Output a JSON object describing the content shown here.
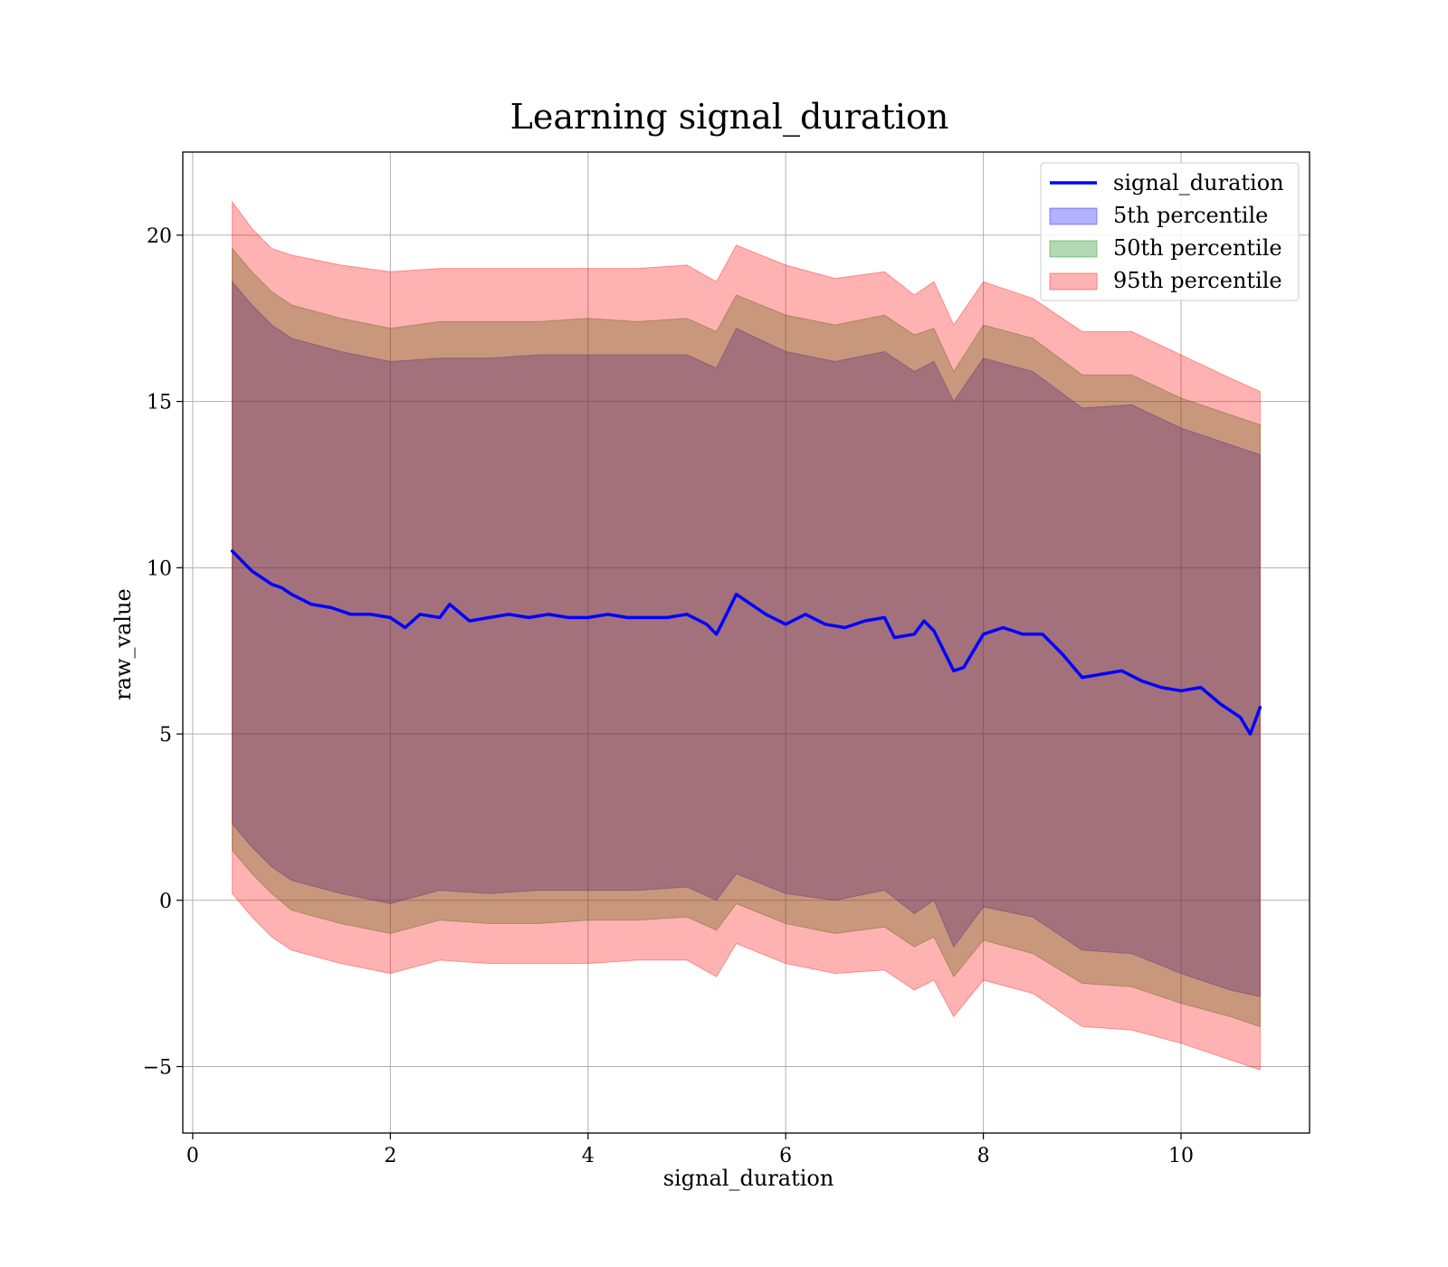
{
  "chart_data": {
    "type": "line",
    "title": "Learning signal_duration",
    "xlabel": "signal_duration",
    "ylabel": "raw_value",
    "xlim": [
      -0.1,
      11.3
    ],
    "ylim": [
      -7,
      22.5
    ],
    "xticks": [
      0,
      2,
      4,
      6,
      8,
      10
    ],
    "xtick_labels": [
      "0",
      "2",
      "4",
      "6",
      "8",
      "10"
    ],
    "yticks": [
      -5,
      0,
      5,
      10,
      15,
      20
    ],
    "ytick_labels": [
      "−5",
      "0",
      "5",
      "10",
      "15",
      "20"
    ],
    "grid": true,
    "legend_position": "top-right",
    "line": {
      "name": "signal_duration",
      "color": "#0000ff",
      "x": [
        0.4,
        0.5,
        0.6,
        0.7,
        0.8,
        0.9,
        1.0,
        1.2,
        1.4,
        1.6,
        1.8,
        2.0,
        2.15,
        2.3,
        2.5,
        2.6,
        2.8,
        3.0,
        3.2,
        3.4,
        3.6,
        3.8,
        4.0,
        4.2,
        4.4,
        4.6,
        4.8,
        5.0,
        5.2,
        5.3,
        5.4,
        5.5,
        5.6,
        5.8,
        6.0,
        6.2,
        6.4,
        6.6,
        6.8,
        7.0,
        7.1,
        7.3,
        7.4,
        7.5,
        7.6,
        7.7,
        7.8,
        7.9,
        8.0,
        8.2,
        8.4,
        8.6,
        8.8,
        9.0,
        9.2,
        9.4,
        9.6,
        9.8,
        10.0,
        10.2,
        10.4,
        10.6,
        10.7,
        10.8
      ],
      "y": [
        10.5,
        10.2,
        9.9,
        9.7,
        9.5,
        9.4,
        9.2,
        8.9,
        8.8,
        8.6,
        8.6,
        8.5,
        8.2,
        8.6,
        8.5,
        8.9,
        8.4,
        8.5,
        8.6,
        8.5,
        8.6,
        8.5,
        8.5,
        8.6,
        8.5,
        8.5,
        8.5,
        8.6,
        8.3,
        8.0,
        8.6,
        9.2,
        9.0,
        8.6,
        8.3,
        8.6,
        8.3,
        8.2,
        8.4,
        8.5,
        7.9,
        8.0,
        8.4,
        8.1,
        7.5,
        6.9,
        7.0,
        7.5,
        8.0,
        8.2,
        8.0,
        8.0,
        7.4,
        6.7,
        6.8,
        6.9,
        6.6,
        6.4,
        6.3,
        6.4,
        5.9,
        5.5,
        5.0,
        5.8
      ]
    },
    "series": [
      {
        "name": "5th percentile",
        "color": "#0000ff",
        "alpha": 0.3,
        "x": [
          0.4,
          0.6,
          0.8,
          1.0,
          1.5,
          2.0,
          2.5,
          3.0,
          3.5,
          4.0,
          4.5,
          5.0,
          5.3,
          5.5,
          6.0,
          6.5,
          7.0,
          7.3,
          7.5,
          7.7,
          8.0,
          8.5,
          9.0,
          9.5,
          10.0,
          10.5,
          10.8
        ],
        "upper": [
          18.6,
          17.9,
          17.3,
          16.9,
          16.5,
          16.2,
          16.3,
          16.3,
          16.4,
          16.4,
          16.4,
          16.4,
          16.0,
          17.2,
          16.5,
          16.2,
          16.5,
          15.9,
          16.2,
          15.0,
          16.3,
          15.9,
          14.8,
          14.9,
          14.2,
          13.7,
          13.4
        ],
        "lower": [
          2.3,
          1.6,
          1.0,
          0.6,
          0.2,
          -0.1,
          0.3,
          0.2,
          0.3,
          0.3,
          0.3,
          0.4,
          0.0,
          0.8,
          0.2,
          0.0,
          0.3,
          -0.4,
          0.0,
          -1.4,
          -0.2,
          -0.5,
          -1.5,
          -1.6,
          -2.2,
          -2.7,
          -2.9
        ]
      },
      {
        "name": "50th percentile",
        "color": "#008000",
        "alpha": 0.3,
        "x": [
          0.4,
          0.6,
          0.8,
          1.0,
          1.5,
          2.0,
          2.5,
          3.0,
          3.5,
          4.0,
          4.5,
          5.0,
          5.3,
          5.5,
          6.0,
          6.5,
          7.0,
          7.3,
          7.5,
          7.7,
          8.0,
          8.5,
          9.0,
          9.5,
          10.0,
          10.5,
          10.8
        ],
        "upper": [
          19.6,
          18.9,
          18.3,
          17.9,
          17.5,
          17.2,
          17.4,
          17.4,
          17.4,
          17.5,
          17.4,
          17.5,
          17.1,
          18.2,
          17.6,
          17.3,
          17.6,
          17.0,
          17.2,
          15.9,
          17.3,
          16.9,
          15.8,
          15.8,
          15.1,
          14.6,
          14.3
        ],
        "lower": [
          1.5,
          0.8,
          0.2,
          -0.3,
          -0.7,
          -1.0,
          -0.6,
          -0.7,
          -0.7,
          -0.6,
          -0.6,
          -0.5,
          -0.9,
          -0.1,
          -0.7,
          -1.0,
          -0.8,
          -1.4,
          -1.1,
          -2.3,
          -1.2,
          -1.6,
          -2.5,
          -2.6,
          -3.1,
          -3.5,
          -3.8
        ]
      },
      {
        "name": "95th percentile",
        "color": "#ff0000",
        "alpha": 0.3,
        "x": [
          0.4,
          0.6,
          0.8,
          1.0,
          1.5,
          2.0,
          2.5,
          3.0,
          3.5,
          4.0,
          4.5,
          5.0,
          5.3,
          5.5,
          6.0,
          6.5,
          7.0,
          7.3,
          7.5,
          7.7,
          8.0,
          8.5,
          9.0,
          9.5,
          10.0,
          10.5,
          10.8
        ],
        "upper": [
          21.0,
          20.2,
          19.6,
          19.4,
          19.1,
          18.9,
          19.0,
          19.0,
          19.0,
          19.0,
          19.0,
          19.1,
          18.6,
          19.7,
          19.1,
          18.7,
          18.9,
          18.2,
          18.6,
          17.3,
          18.6,
          18.1,
          17.1,
          17.1,
          16.4,
          15.7,
          15.3
        ],
        "lower": [
          0.2,
          -0.5,
          -1.1,
          -1.5,
          -1.9,
          -2.2,
          -1.8,
          -1.9,
          -1.9,
          -1.9,
          -1.8,
          -1.8,
          -2.3,
          -1.3,
          -1.9,
          -2.2,
          -2.1,
          -2.7,
          -2.4,
          -3.5,
          -2.4,
          -2.8,
          -3.8,
          -3.9,
          -4.3,
          -4.8,
          -5.1
        ]
      }
    ]
  }
}
